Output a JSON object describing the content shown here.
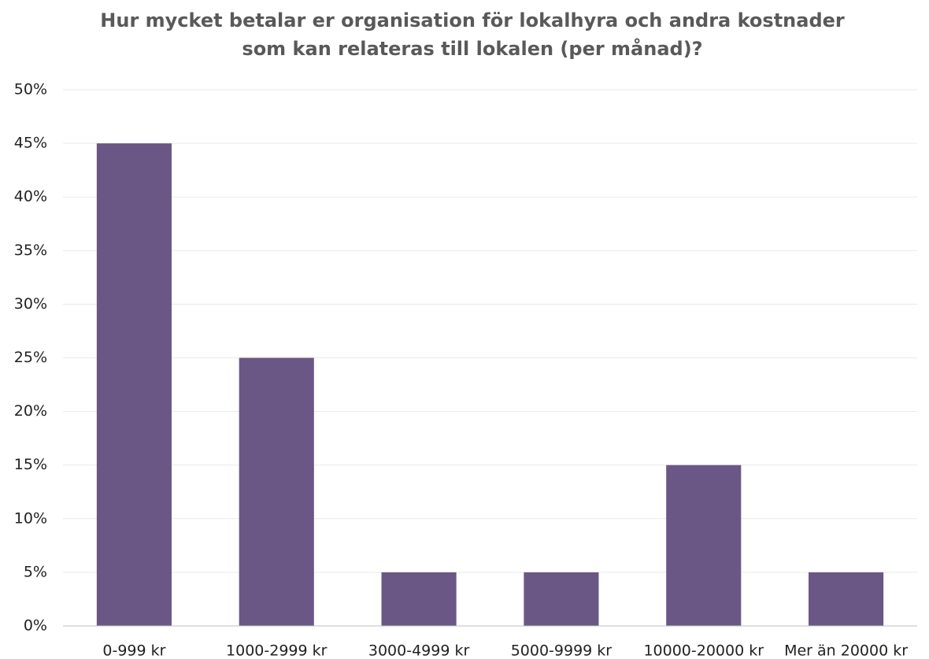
{
  "chart_data": {
    "type": "bar",
    "title": "Hur mycket betalar er organisation för lokalhyra och andra kostnader som kan relateras till lokalen (per månad)?",
    "categories": [
      "0-999 kr",
      "1000-2999 kr",
      "3000-4999 kr",
      "5000-9999 kr",
      "10000-20000 kr",
      "Mer än 20000 kr"
    ],
    "values": [
      45,
      25,
      5,
      5,
      15,
      5
    ],
    "color": "#6a5785",
    "ylim": [
      0,
      50
    ],
    "yticks": [
      {
        "value": 0,
        "label": "0%"
      },
      {
        "value": 5,
        "label": "5%"
      },
      {
        "value": 10,
        "label": "10%"
      },
      {
        "value": 15,
        "label": "15%"
      },
      {
        "value": 20,
        "label": "20%"
      },
      {
        "value": 25,
        "label": "25%"
      },
      {
        "value": 30,
        "label": "30%"
      },
      {
        "value": 35,
        "label": "35%"
      },
      {
        "value": 40,
        "label": "40%"
      },
      {
        "value": 45,
        "label": "45%"
      },
      {
        "value": 50,
        "label": "50%"
      }
    ],
    "grid": true
  }
}
